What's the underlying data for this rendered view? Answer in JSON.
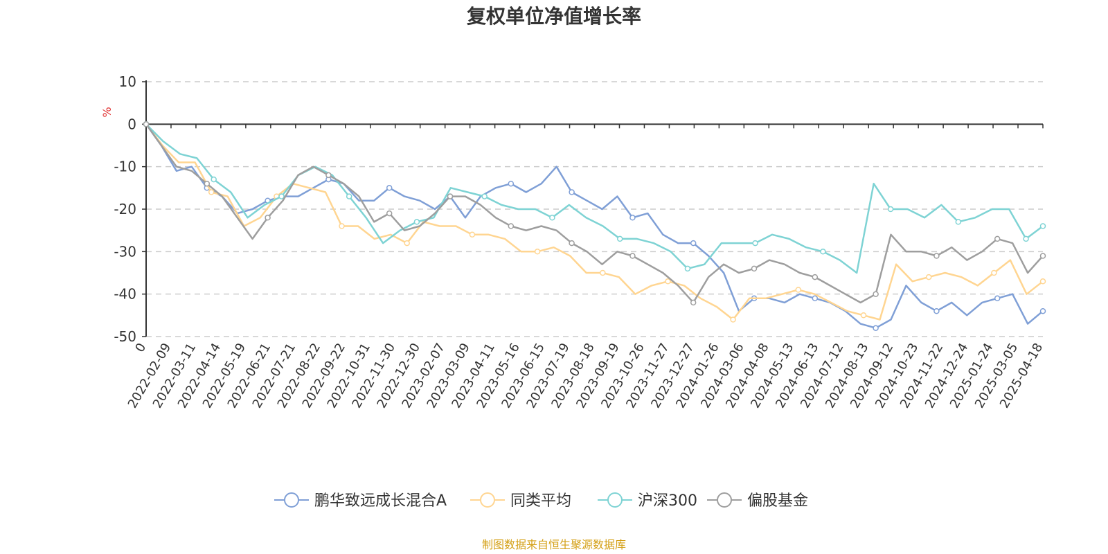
{
  "chart_data": {
    "type": "line",
    "title": "复权单位净值增长率",
    "ylabel": "%",
    "ylim": [
      -50,
      10
    ],
    "yticks": [
      10,
      0,
      -10,
      -20,
      -30,
      -40,
      -50
    ],
    "grid": true,
    "legend_position": "bottom",
    "source": "制图数据来自恒生聚源数据库",
    "x_tick_labels": [
      "0",
      "2022-02-09",
      "2022-03-11",
      "2022-04-14",
      "2022-05-19",
      "2022-06-21",
      "2022-07-21",
      "2022-08-22",
      "2022-09-22",
      "2022-10-31",
      "2022-11-30",
      "2022-12-30",
      "2023-02-07",
      "2023-03-09",
      "2023-04-11",
      "2023-05-16",
      "2023-06-15",
      "2023-07-19",
      "2023-08-18",
      "2023-09-19",
      "2023-10-26",
      "2023-11-27",
      "2023-12-27",
      "2024-01-26",
      "2024-03-06",
      "2024-04-08",
      "2024-05-13",
      "2024-06-13",
      "2024-07-12",
      "2024-08-13",
      "2024-09-12",
      "2024-10-23",
      "2024-11-22",
      "2024-12-24",
      "2025-01-24",
      "2025-03-05",
      "2025-04-18"
    ],
    "series": [
      {
        "name": "鹏华致远成长混合A",
        "color": "#7f9fd6",
        "values": [
          0,
          -5,
          -11,
          -10,
          -15,
          -17,
          -21,
          -20,
          -18,
          -17,
          -17,
          -15,
          -13,
          -14,
          -18,
          -18,
          -15,
          -17,
          -18,
          -20,
          -17,
          -22,
          -17,
          -15,
          -14,
          -16,
          -14,
          -10,
          -16,
          -18,
          -20,
          -17,
          -22,
          -21,
          -26,
          -28,
          -28,
          -31,
          -35,
          -44,
          -41,
          -41,
          -42,
          -40,
          -41,
          -42,
          -44,
          -47,
          -48,
          -46,
          -38,
          -42,
          -44,
          -42,
          -45,
          -42,
          -41,
          -40,
          -47,
          -44
        ]
      },
      {
        "name": "同类平均",
        "color": "#ffd591",
        "values": [
          0,
          -5,
          -9,
          -9,
          -16,
          -17,
          -24,
          -22,
          -17,
          -14,
          -15,
          -16,
          -24,
          -24,
          -27,
          -26,
          -28,
          -23,
          -24,
          -24,
          -26,
          -26,
          -27,
          -30,
          -30,
          -29,
          -31,
          -35,
          -35,
          -36,
          -40,
          -38,
          -37,
          -38,
          -41,
          -43,
          -46,
          -41,
          -41,
          -40,
          -39,
          -40,
          -42,
          -44,
          -45,
          -46,
          -33,
          -37,
          -36,
          -35,
          -36,
          -38,
          -35,
          -32,
          -40,
          -37
        ]
      },
      {
        "name": "沪深300",
        "color": "#7ed3d4",
        "values": [
          0,
          -4,
          -7,
          -8,
          -13,
          -16,
          -22,
          -19,
          -17,
          -12,
          -10,
          -12,
          -17,
          -22,
          -28,
          -25,
          -23,
          -22,
          -15,
          -16,
          -17,
          -19,
          -20,
          -20,
          -22,
          -19,
          -22,
          -24,
          -27,
          -27,
          -28,
          -30,
          -34,
          -33,
          -28,
          -28,
          -28,
          -26,
          -27,
          -29,
          -30,
          -32,
          -35,
          -14,
          -20,
          -20,
          -22,
          -19,
          -23,
          -22,
          -20,
          -20,
          -27,
          -24
        ]
      },
      {
        "name": "偏股基金",
        "color": "#9e9e9e",
        "values": [
          0,
          -5,
          -10,
          -11,
          -14,
          -17,
          -22,
          -27,
          -22,
          -18,
          -12,
          -10,
          -12,
          -14,
          -17,
          -23,
          -21,
          -25,
          -24,
          -21,
          -17,
          -17,
          -19,
          -22,
          -24,
          -25,
          -24,
          -25,
          -28,
          -30,
          -33,
          -30,
          -31,
          -33,
          -35,
          -38,
          -42,
          -36,
          -33,
          -35,
          -34,
          -32,
          -33,
          -35,
          -36,
          -38,
          -40,
          -42,
          -40,
          -26,
          -30,
          -30,
          -31,
          -29,
          -32,
          -30,
          -27,
          -28,
          -35,
          -31
        ]
      }
    ]
  }
}
